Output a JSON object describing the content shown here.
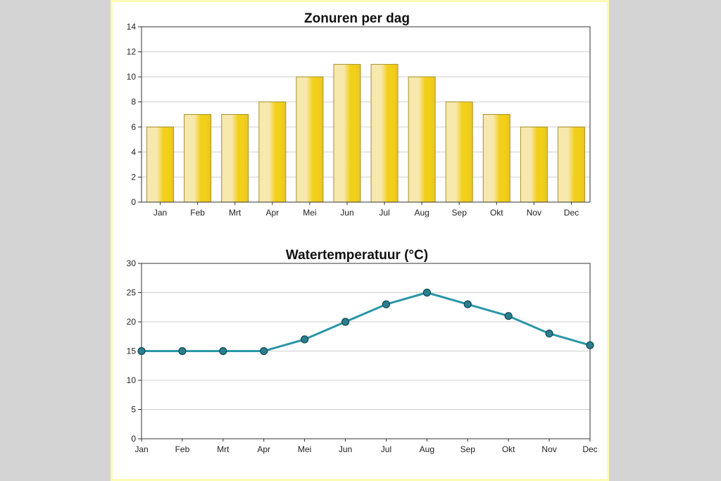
{
  "chart_data": [
    {
      "type": "bar",
      "title": "Zonuren per dag",
      "categories": [
        "Jan",
        "Feb",
        "Mrt",
        "Apr",
        "Mei",
        "Jun",
        "Jul",
        "Aug",
        "Sep",
        "Okt",
        "Nov",
        "Dec"
      ],
      "values": [
        6,
        7,
        7,
        8,
        10,
        11,
        11,
        10,
        8,
        7,
        6,
        6
      ],
      "ylim": [
        0,
        14
      ],
      "yticks": [
        0,
        2,
        4,
        6,
        8,
        10,
        12,
        14
      ],
      "grid": true,
      "colors": {
        "bar_light": "#f7e8ad",
        "bar_dark": "#f2cf18",
        "bar_stroke": "#a8922a"
      }
    },
    {
      "type": "line",
      "title": "Watertemperatuur (°C)",
      "categories": [
        "Jan",
        "Feb",
        "Mrt",
        "Apr",
        "Mei",
        "Jun",
        "Jul",
        "Aug",
        "Sep",
        "Okt",
        "Nov",
        "Dec"
      ],
      "values": [
        15,
        15,
        15,
        15,
        17,
        20,
        23,
        25,
        23,
        21,
        18,
        16
      ],
      "ylim": [
        0,
        30
      ],
      "yticks": [
        0,
        5,
        10,
        15,
        20,
        25,
        30
      ],
      "grid": true,
      "colors": {
        "line": "#2a96a8",
        "marker": "#2a7f8f",
        "marker_stroke": "#124852"
      }
    }
  ]
}
